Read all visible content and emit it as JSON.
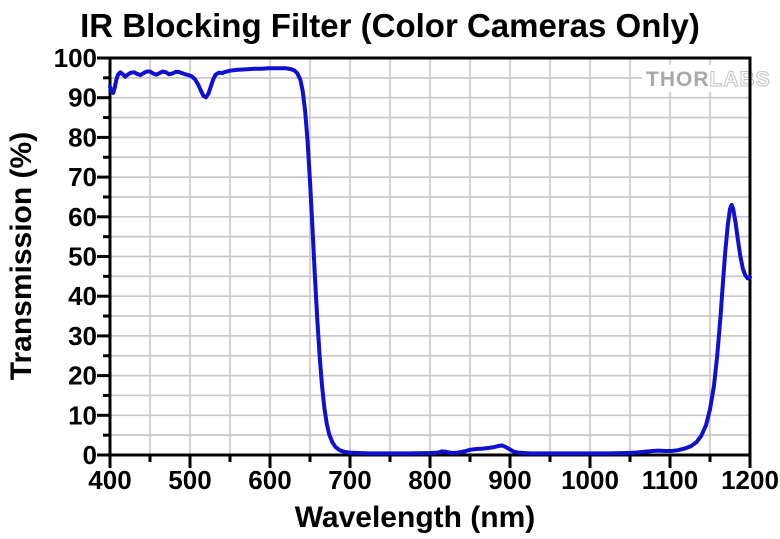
{
  "chart_data": {
    "type": "line",
    "title": "IR Blocking Filter (Color Cameras Only)",
    "xlabel": "Wavelength (nm)",
    "ylabel": "Transmission (%)",
    "xlim": [
      400,
      1200
    ],
    "ylim": [
      0,
      100
    ],
    "x_major_tick_step": 100,
    "x_minor_tick_step": 50,
    "y_major_tick_step": 10,
    "y_minor_tick_step": 5,
    "x_tick_labels": [
      "400",
      "500",
      "600",
      "700",
      "800",
      "900",
      "1000",
      "1100",
      "1200"
    ],
    "y_tick_labels": [
      "0",
      "10",
      "20",
      "30",
      "40",
      "50",
      "60",
      "70",
      "80",
      "90",
      "100"
    ],
    "grid": {
      "show": true,
      "x_step": 50,
      "y_step": 5,
      "color": "#c9c9c9"
    },
    "legend": {
      "show": false
    },
    "series": [
      {
        "name": "IR blocking filter transmission",
        "color": "#1010d0",
        "points": [
          [
            400,
            92.8
          ],
          [
            402,
            91.6
          ],
          [
            404,
            91.2
          ],
          [
            406,
            92.6
          ],
          [
            408,
            94.6
          ],
          [
            410,
            95.8
          ],
          [
            413,
            96.4
          ],
          [
            416,
            95.9
          ],
          [
            419,
            95.3
          ],
          [
            422,
            95.8
          ],
          [
            426,
            96.3
          ],
          [
            430,
            96.4
          ],
          [
            434,
            96.0
          ],
          [
            438,
            95.7
          ],
          [
            442,
            96.2
          ],
          [
            446,
            96.6
          ],
          [
            450,
            96.6
          ],
          [
            454,
            96.1
          ],
          [
            458,
            95.8
          ],
          [
            462,
            96.2
          ],
          [
            466,
            96.6
          ],
          [
            470,
            96.4
          ],
          [
            474,
            95.9
          ],
          [
            478,
            96.1
          ],
          [
            482,
            96.5
          ],
          [
            486,
            96.5
          ],
          [
            490,
            96.2
          ],
          [
            494,
            95.9
          ],
          [
            498,
            95.7
          ],
          [
            502,
            95.4
          ],
          [
            506,
            94.7
          ],
          [
            510,
            93.4
          ],
          [
            514,
            91.6
          ],
          [
            517,
            90.4
          ],
          [
            520,
            90.1
          ],
          [
            523,
            91.0
          ],
          [
            526,
            92.8
          ],
          [
            529,
            94.6
          ],
          [
            532,
            95.8
          ],
          [
            536,
            96.3
          ],
          [
            540,
            96.2
          ],
          [
            544,
            96.5
          ],
          [
            550,
            96.8
          ],
          [
            558,
            97.0
          ],
          [
            566,
            97.1
          ],
          [
            574,
            97.2
          ],
          [
            582,
            97.3
          ],
          [
            590,
            97.3
          ],
          [
            598,
            97.4
          ],
          [
            606,
            97.4
          ],
          [
            614,
            97.4
          ],
          [
            620,
            97.4
          ],
          [
            626,
            97.2
          ],
          [
            630,
            96.9
          ],
          [
            634,
            96.2
          ],
          [
            638,
            94.5
          ],
          [
            641,
            91.5
          ],
          [
            644,
            86.5
          ],
          [
            647,
            79.0
          ],
          [
            650,
            69.0
          ],
          [
            653,
            57.5
          ],
          [
            656,
            45.5
          ],
          [
            659,
            34.5
          ],
          [
            662,
            25.0
          ],
          [
            665,
            17.5
          ],
          [
            668,
            11.8
          ],
          [
            671,
            7.8
          ],
          [
            674,
            5.2
          ],
          [
            678,
            3.2
          ],
          [
            682,
            2.0
          ],
          [
            687,
            1.2
          ],
          [
            693,
            0.8
          ],
          [
            700,
            0.6
          ],
          [
            710,
            0.5
          ],
          [
            725,
            0.4
          ],
          [
            750,
            0.4
          ],
          [
            775,
            0.4
          ],
          [
            800,
            0.5
          ],
          [
            810,
            0.6
          ],
          [
            815,
            0.9
          ],
          [
            820,
            0.8
          ],
          [
            827,
            0.5
          ],
          [
            835,
            0.6
          ],
          [
            843,
            0.9
          ],
          [
            850,
            1.3
          ],
          [
            858,
            1.5
          ],
          [
            866,
            1.6
          ],
          [
            874,
            1.8
          ],
          [
            880,
            2.0
          ],
          [
            886,
            2.3
          ],
          [
            890,
            2.4
          ],
          [
            894,
            2.1
          ],
          [
            899,
            1.5
          ],
          [
            904,
            0.9
          ],
          [
            910,
            0.6
          ],
          [
            925,
            0.4
          ],
          [
            950,
            0.4
          ],
          [
            975,
            0.4
          ],
          [
            1000,
            0.4
          ],
          [
            1025,
            0.4
          ],
          [
            1045,
            0.5
          ],
          [
            1058,
            0.6
          ],
          [
            1068,
            0.8
          ],
          [
            1078,
            1.0
          ],
          [
            1086,
            1.1
          ],
          [
            1094,
            1.0
          ],
          [
            1102,
            1.0
          ],
          [
            1110,
            1.2
          ],
          [
            1118,
            1.6
          ],
          [
            1126,
            2.2
          ],
          [
            1133,
            3.2
          ],
          [
            1139,
            4.8
          ],
          [
            1145,
            7.5
          ],
          [
            1150,
            11.5
          ],
          [
            1155,
            17.5
          ],
          [
            1159,
            25.0
          ],
          [
            1163,
            34.5
          ],
          [
            1166,
            43.0
          ],
          [
            1169,
            51.0
          ],
          [
            1172,
            57.5
          ],
          [
            1175,
            62.0
          ],
          [
            1177,
            63.0
          ],
          [
            1179,
            62.0
          ],
          [
            1182,
            58.5
          ],
          [
            1185,
            54.0
          ],
          [
            1188,
            50.0
          ],
          [
            1191,
            47.0
          ],
          [
            1194,
            45.3
          ],
          [
            1197,
            44.5
          ],
          [
            1200,
            44.8
          ]
        ]
      }
    ],
    "watermark": {
      "text_primary": "THOR",
      "text_secondary": "LABS",
      "color_primary": "#a8a8a8",
      "color_secondary": "#c2c2c2"
    },
    "colors": {
      "axis": "#000000",
      "grid": "#c9c9c9",
      "background": "#ffffff",
      "curve": "#1010d0"
    }
  }
}
